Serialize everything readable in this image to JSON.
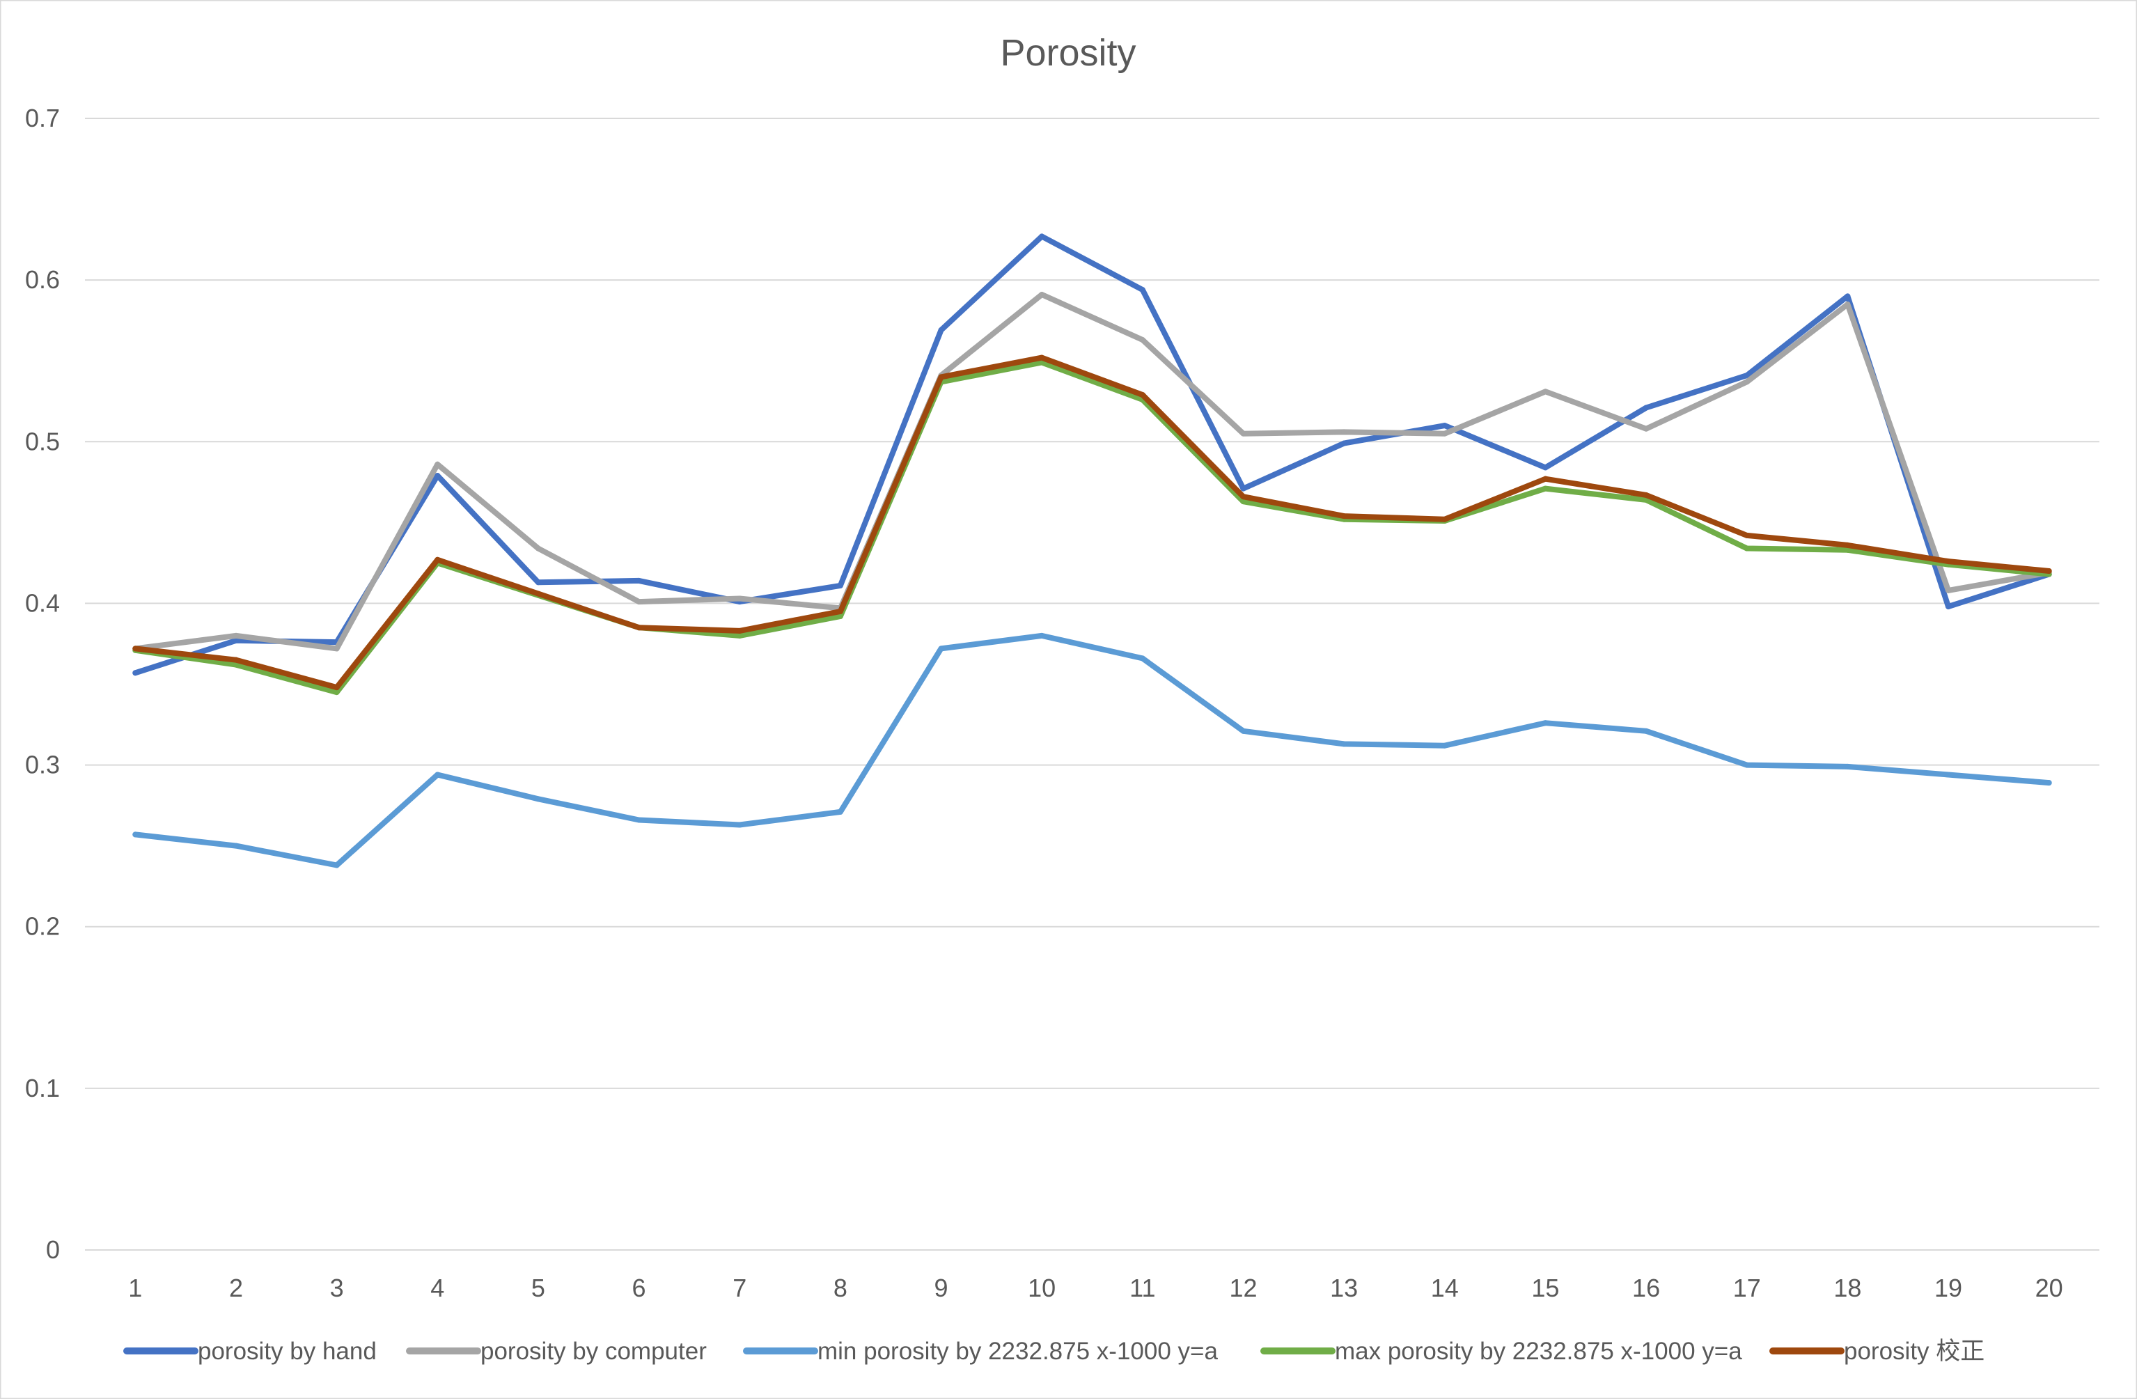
{
  "chart_data": {
    "type": "line",
    "title": "Porosity",
    "xlabel": "",
    "ylabel": "",
    "categories": [
      "1",
      "2",
      "3",
      "4",
      "5",
      "6",
      "7",
      "8",
      "9",
      "10",
      "11",
      "12",
      "13",
      "14",
      "15",
      "16",
      "17",
      "18",
      "19",
      "20"
    ],
    "ylim": [
      0,
      0.7
    ],
    "y_ticks": [
      "0",
      "0.1",
      "0.2",
      "0.3",
      "0.4",
      "0.5",
      "0.6",
      "0.7"
    ],
    "grid": true,
    "legend_position": "bottom",
    "series": [
      {
        "name": "porosity by hand",
        "color": "#4472c4",
        "values": [
          0.357,
          0.377,
          0.376,
          0.479,
          0.413,
          0.414,
          0.401,
          0.411,
          0.569,
          0.627,
          0.594,
          0.471,
          0.499,
          0.51,
          0.484,
          0.521,
          0.541,
          0.59,
          0.398,
          0.418
        ]
      },
      {
        "name": "porosity by computer",
        "color": "#a5a5a5",
        "values": [
          0.372,
          0.38,
          0.372,
          0.486,
          0.434,
          0.401,
          0.403,
          0.397,
          0.541,
          0.591,
          0.563,
          0.505,
          0.506,
          0.505,
          0.531,
          0.508,
          0.537,
          0.585,
          0.408,
          0.419
        ]
      },
      {
        "name": "min porosity by 2232.875 x-1000 y=a",
        "color": "#5b9bd5",
        "values": [
          0.257,
          0.25,
          0.238,
          0.294,
          0.279,
          0.266,
          0.263,
          0.271,
          0.372,
          0.38,
          0.366,
          0.321,
          0.313,
          0.312,
          0.326,
          0.321,
          0.3,
          0.299,
          0.294,
          0.289
        ]
      },
      {
        "name": "max porosity by 2232.875 x-1000 y=a",
        "color": "#70ad47",
        "values": [
          0.371,
          0.362,
          0.345,
          0.425,
          0.405,
          0.385,
          0.38,
          0.392,
          0.537,
          0.549,
          0.526,
          0.463,
          0.452,
          0.451,
          0.471,
          0.464,
          0.434,
          0.433,
          0.424,
          0.418
        ]
      },
      {
        "name": "porosity 校正",
        "color": "#9e480e",
        "values": [
          0.372,
          0.365,
          0.348,
          0.427,
          0.406,
          0.385,
          0.383,
          0.395,
          0.54,
          0.552,
          0.529,
          0.466,
          0.454,
          0.452,
          0.477,
          0.467,
          0.442,
          0.436,
          0.426,
          0.42
        ]
      }
    ]
  }
}
